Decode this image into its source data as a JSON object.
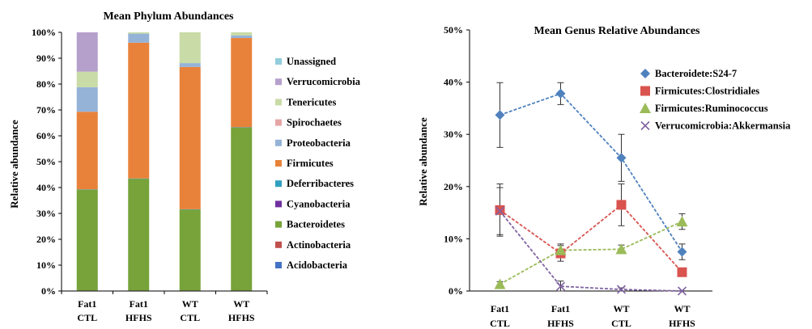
{
  "chart_data": [
    {
      "type": "bar",
      "stacked": true,
      "normalized": true,
      "title": "Mean Phylum Abundances",
      "xlabel": "",
      "ylabel": "Relative abundance",
      "ylim": [
        0,
        100
      ],
      "yticks": [
        "0%",
        "10%",
        "20%",
        "30%",
        "40%",
        "50%",
        "60%",
        "70%",
        "80%",
        "90%",
        "100%"
      ],
      "categories": [
        [
          "Fat1",
          "CTL"
        ],
        [
          "Fat1",
          "HFHS"
        ],
        [
          "WT",
          "CTL"
        ],
        [
          "WT",
          "HFHS"
        ]
      ],
      "legend_position": "right",
      "series": [
        {
          "name": "Acidobacteria",
          "color": "#4472c4",
          "values": [
            0,
            0,
            0,
            0
          ]
        },
        {
          "name": "Actinobacteria",
          "color": "#c0504d",
          "values": [
            0.2,
            0.2,
            0.2,
            0.2
          ]
        },
        {
          "name": "Bacteroidetes",
          "color": "#77a33a",
          "values": [
            39,
            43.2,
            31.3,
            63
          ]
        },
        {
          "name": "Cyanobacteria",
          "color": "#7030a0",
          "values": [
            0,
            0,
            0,
            0
          ]
        },
        {
          "name": "Deferribacteres",
          "color": "#31a0c0",
          "values": [
            0.1,
            0.1,
            0.1,
            0.1
          ]
        },
        {
          "name": "Firmicutes",
          "color": "#e8823a",
          "values": [
            30,
            52.5,
            55,
            34.5
          ]
        },
        {
          "name": "Proteobacteria",
          "color": "#95b3d7",
          "values": [
            9.5,
            3.5,
            1.5,
            1
          ]
        },
        {
          "name": "Spirochaetes",
          "color": "#e6a5a5",
          "values": [
            0,
            0,
            0,
            0
          ]
        },
        {
          "name": "Tenericutes",
          "color": "#c9dba6",
          "values": [
            6,
            0.5,
            12,
            1.2
          ]
        },
        {
          "name": "Verrucomicrobia",
          "color": "#b5a0cc",
          "values": [
            15.2,
            0,
            0,
            0
          ]
        },
        {
          "name": "Unassigned",
          "color": "#92cddc",
          "values": [
            0,
            0,
            0,
            0
          ]
        }
      ]
    },
    {
      "type": "line",
      "title": "Mean Genus Relative Abundances",
      "xlabel": "",
      "ylabel": "Relative abundance",
      "ylim": [
        0,
        50
      ],
      "yticks": [
        "0%",
        "10%",
        "20%",
        "30%",
        "40%",
        "50%"
      ],
      "categories": [
        [
          "Fat1",
          "CTL"
        ],
        [
          "Fat1",
          "HFHS"
        ],
        [
          "WT",
          "CTL"
        ],
        [
          "WT",
          "HFHS"
        ]
      ],
      "legend_position": "top-right",
      "grid": false,
      "series": [
        {
          "name": "Bacteroidete:S24-7",
          "color": "#4f81bd",
          "marker": "diamond",
          "values": [
            33.7,
            37.8,
            25.5,
            7.5
          ],
          "error": [
            6.2,
            2.1,
            4.5,
            1.5
          ]
        },
        {
          "name": "Firmicutes:Clostridiales",
          "color": "#d9534f",
          "marker": "square",
          "values": [
            15.5,
            7.2,
            16.5,
            3.6
          ],
          "error": [
            5.0,
            1.5,
            4.0,
            0.5
          ]
        },
        {
          "name": "Firmicutes:Ruminococcus",
          "color": "#9bbb59",
          "marker": "triangle",
          "values": [
            1.3,
            7.8,
            8.0,
            13.3
          ],
          "error": [
            0.5,
            1.2,
            0.8,
            1.5
          ]
        },
        {
          "name": "Verrucomicrobia:Akkermansia",
          "color": "#8064a2",
          "marker": "x",
          "values": [
            15.3,
            0.9,
            0.3,
            0.0
          ],
          "error": [
            4.5,
            1.0,
            0.3,
            0.0
          ]
        }
      ]
    }
  ]
}
